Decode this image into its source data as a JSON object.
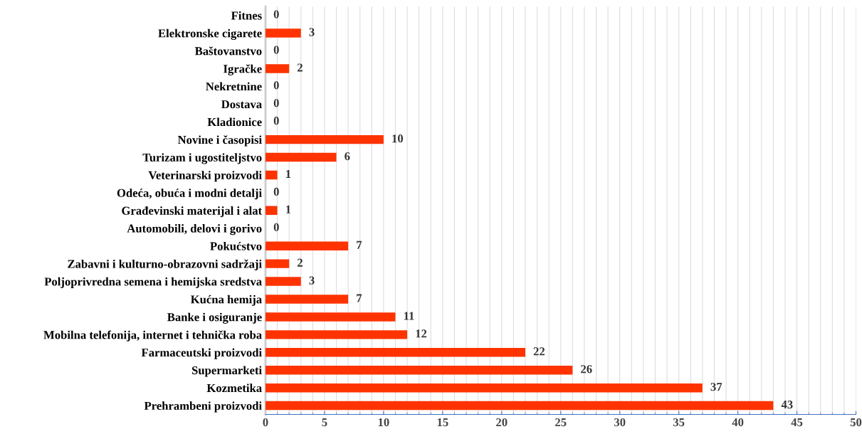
{
  "chart_data": {
    "type": "bar",
    "orientation": "horizontal",
    "categories": [
      "Fitnes",
      "Elektronske cigarete",
      "Baštovanstvo",
      "Igračke",
      "Nekretnine",
      "Dostava",
      "Kladionice",
      "Novine i časopisi",
      "Turizam i ugostiteljstvo",
      "Veterinarski proizvodi",
      "Odeća, obuća i modni detalji",
      "Građevinski materijal i alat",
      "Automobili, delovi i gorivo",
      "Pokućstvo",
      "Zabavni i kulturno-obrazovni sadržaji",
      "Poljoprivredna semena i hemijska sredstva",
      "Kućna hemija",
      "Banke i osiguranje",
      "Mobilna telefonija, internet i tehnička roba",
      "Farmaceutski proizvodi",
      "Supermarketi",
      "Kozmetika",
      "Prehrambeni proizvodi"
    ],
    "values": [
      0,
      3,
      0,
      2,
      0,
      0,
      0,
      10,
      6,
      1,
      0,
      1,
      0,
      7,
      2,
      3,
      7,
      11,
      12,
      22,
      26,
      37,
      43
    ],
    "color": "#ff3300",
    "data_labels": true,
    "xlim": [
      0,
      50
    ],
    "xticks": [
      0,
      5,
      10,
      15,
      20,
      25,
      30,
      35,
      40,
      45,
      50
    ],
    "grid": "x",
    "legend": false
  }
}
